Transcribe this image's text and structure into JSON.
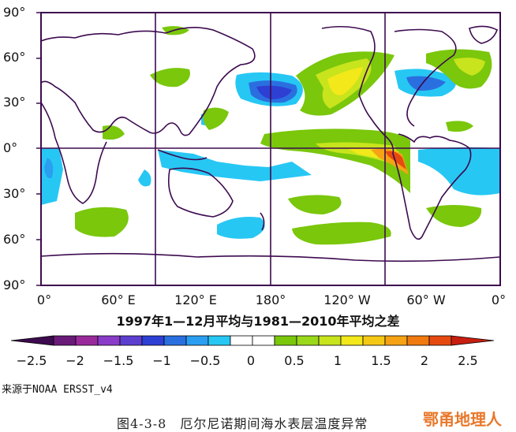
{
  "map": {
    "lat_labels": [
      "90°",
      "60°",
      "30°",
      "0°",
      "30°",
      "60°",
      "90°"
    ],
    "lon_labels": [
      "0°",
      "60° E",
      "120° E",
      "180°",
      "120° W",
      "60° W",
      "0°"
    ],
    "caption": "1997年1—12月平均与1981—2010年平均之差"
  },
  "colorbar": {
    "ticks": [
      "−2.5",
      "−2",
      "−1.5",
      "−1",
      "−0.5",
      "0",
      "0.5",
      "1",
      "1.5",
      "2",
      "2.5"
    ],
    "colors": [
      "#3d0a4f",
      "#6a1a78",
      "#9a2a9c",
      "#8a3cc8",
      "#5d3fd0",
      "#2e3fd4",
      "#2a6fe0",
      "#2a9ef0",
      "#27c7f4",
      "#ffffff",
      "#ffffff",
      "#7ac70c",
      "#9ad81a",
      "#c7e41c",
      "#f2e81a",
      "#f5c816",
      "#f5a314",
      "#f07a10",
      "#e64a10",
      "#c81e10"
    ]
  },
  "source": "来源于NOAA ERSST_v4",
  "figure_title": "图4-3-8　厄尔尼诺期间海水表层温度异常",
  "watermark": "鄂甬地理人"
}
